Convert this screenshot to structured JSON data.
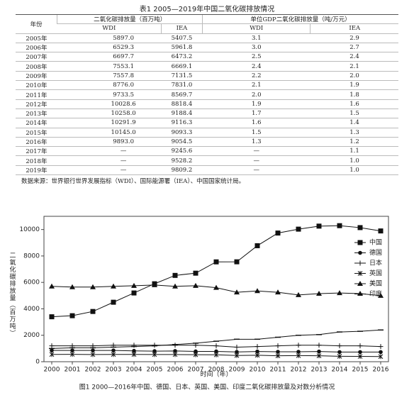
{
  "table": {
    "title": "表1 2005—2019年中国二氧化碳排放情况",
    "header": {
      "year": "年份",
      "emission": "二氧化碳排放量（百万吨）",
      "intensity": "单位GDP二氧化碳排放量（吨/万元）",
      "sub": [
        "WDI",
        "IEA",
        "WDI",
        "IEA"
      ]
    },
    "rows": [
      [
        "2005年",
        "5897.0",
        "5407.5",
        "3.1",
        "2.9"
      ],
      [
        "2006年",
        "6529.3",
        "5961.8",
        "3.0",
        "2.7"
      ],
      [
        "2007年",
        "6697.7",
        "6473.2",
        "2.5",
        "2.4"
      ],
      [
        "2008年",
        "7553.1",
        "6669.1",
        "2.4",
        "2.1"
      ],
      [
        "2009年",
        "7557.8",
        "7131.5",
        "2.2",
        "2.0"
      ],
      [
        "2010年",
        "8776.0",
        "7831.0",
        "2.1",
        "1.9"
      ],
      [
        "2011年",
        "9733.5",
        "8569.7",
        "2.0",
        "1.8"
      ],
      [
        "2012年",
        "10028.6",
        "8818.4",
        "1.9",
        "1.6"
      ],
      [
        "2013年",
        "10258.0",
        "9188.4",
        "1.7",
        "1.5"
      ],
      [
        "2014年",
        "10291.9",
        "9116.3",
        "1.6",
        "1.4"
      ],
      [
        "2015年",
        "10145.0",
        "9093.3",
        "1.5",
        "1.3"
      ],
      [
        "2016年",
        "9893.0",
        "9054.5",
        "1.3",
        "1.2"
      ],
      [
        "2017年",
        "—",
        "9245.6",
        "—",
        "1.1"
      ],
      [
        "2018年",
        "—",
        "9528.2",
        "—",
        "1.0"
      ],
      [
        "2019年",
        "—",
        "9809.2",
        "—",
        "1.0"
      ]
    ],
    "source": "数据来源：世界银行世界发展指标（WDI）、国际能源署（IEA）、中国国家统计局。"
  },
  "chart_data": {
    "type": "line",
    "title": "图1 2000—2016年中国、德国、日本、英国、美国、印度二氧化碳排放量及对数分析情况",
    "x_label": "时间（年）",
    "y_label": "二氧化碳排放量（百万吨）",
    "categories": [
      "2000",
      "2001",
      "2002",
      "2003",
      "2004",
      "2005",
      "2006",
      "2007",
      "2008",
      "2009",
      "2010",
      "2011",
      "2012",
      "2013",
      "2014",
      "2015",
      "2016"
    ],
    "ylim": [
      0,
      11000
    ],
    "yticks": [
      0,
      2000,
      4000,
      6000,
      8000,
      10000
    ],
    "legend": "right",
    "series": [
      {
        "name": "中国",
        "color": "#111",
        "marker": "square",
        "values": [
          3400,
          3480,
          3800,
          4500,
          5200,
          5897,
          6529,
          6698,
          7553,
          7558,
          8776,
          9734,
          10029,
          10258,
          10292,
          10145,
          9893
        ]
      },
      {
        "name": "德国",
        "color": "#111",
        "marker": "circle",
        "values": [
          850,
          850,
          850,
          850,
          820,
          800,
          810,
          780,
          780,
          740,
          770,
          750,
          750,
          770,
          730,
          730,
          730
        ]
      },
      {
        "name": "日本",
        "color": "#111",
        "marker": "plus",
        "values": [
          1200,
          1200,
          1200,
          1250,
          1250,
          1250,
          1250,
          1250,
          1200,
          1100,
          1150,
          1200,
          1250,
          1250,
          1200,
          1200,
          1150
        ]
      },
      {
        "name": "英国",
        "color": "#111",
        "marker": "star",
        "values": [
          550,
          560,
          540,
          550,
          550,
          540,
          540,
          530,
          520,
          470,
          490,
          450,
          460,
          450,
          410,
          400,
          390
        ]
      },
      {
        "name": "美国",
        "color": "#111",
        "marker": "triangle",
        "values": [
          5700,
          5650,
          5650,
          5700,
          5750,
          5800,
          5700,
          5750,
          5600,
          5250,
          5350,
          5250,
          5050,
          5150,
          5200,
          5150,
          5000
        ]
      },
      {
        "name": "印度",
        "color": "#111",
        "marker": "dash",
        "values": [
          1000,
          1050,
          1050,
          1100,
          1150,
          1200,
          1300,
          1400,
          1550,
          1700,
          1700,
          1850,
          2000,
          2050,
          2250,
          2300,
          2400
        ]
      }
    ]
  }
}
